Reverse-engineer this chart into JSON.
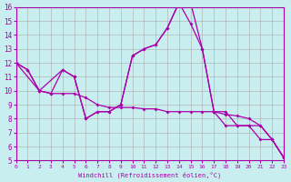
{
  "xlabel": "Windchill (Refroidissement éolien,°C)",
  "xlim": [
    0,
    23
  ],
  "ylim": [
    5,
    16
  ],
  "yticks": [
    5,
    6,
    7,
    8,
    9,
    10,
    11,
    12,
    13,
    14,
    15,
    16
  ],
  "xticks": [
    0,
    1,
    2,
    3,
    4,
    5,
    6,
    7,
    8,
    9,
    10,
    11,
    12,
    13,
    14,
    15,
    16,
    17,
    18,
    19,
    20,
    21,
    22,
    23
  ],
  "background_color": "#c8eef0",
  "grid_color": "#aaaaaa",
  "line_color": "#aa00aa",
  "line1_x": [
    0,
    1,
    2,
    3,
    4,
    5,
    6,
    7,
    8,
    9,
    10,
    11,
    12,
    13,
    14,
    15,
    16,
    17,
    18,
    19,
    20,
    21,
    22,
    23
  ],
  "line1_y": [
    12,
    11.5,
    10,
    9.8,
    11.5,
    11,
    8,
    8.5,
    8.5,
    9,
    12.5,
    13,
    13.3,
    14.5,
    16.3,
    16.3,
    13,
    8.5,
    7.5,
    7.5,
    7.5,
    6.5,
    6.5,
    5.2
  ],
  "line2_x": [
    0,
    1,
    2,
    3,
    4,
    5,
    6,
    7,
    8,
    9,
    10,
    11,
    12,
    13,
    14,
    15,
    16,
    17,
    18,
    19,
    20,
    21,
    22,
    23
  ],
  "line2_y": [
    12,
    11.5,
    10,
    9.8,
    9.8,
    9.8,
    9.5,
    9,
    8.8,
    8.8,
    8.8,
    8.7,
    8.7,
    8.5,
    8.5,
    8.5,
    8.5,
    8.5,
    8.3,
    8.2,
    8.0,
    7.5,
    6.5,
    5.2
  ],
  "line3_x": [
    0,
    2,
    4,
    5,
    6,
    7,
    8,
    9,
    10,
    11,
    12,
    13,
    14,
    15,
    16,
    17,
    18,
    19,
    20,
    21,
    22,
    23
  ],
  "line3_y": [
    12,
    10,
    11.5,
    11,
    8,
    8.5,
    8.5,
    9,
    12.5,
    13,
    13.3,
    14.5,
    16.3,
    14.8,
    13,
    8.5,
    8.5,
    7.5,
    7.5,
    7.5,
    6.5,
    5.2
  ]
}
